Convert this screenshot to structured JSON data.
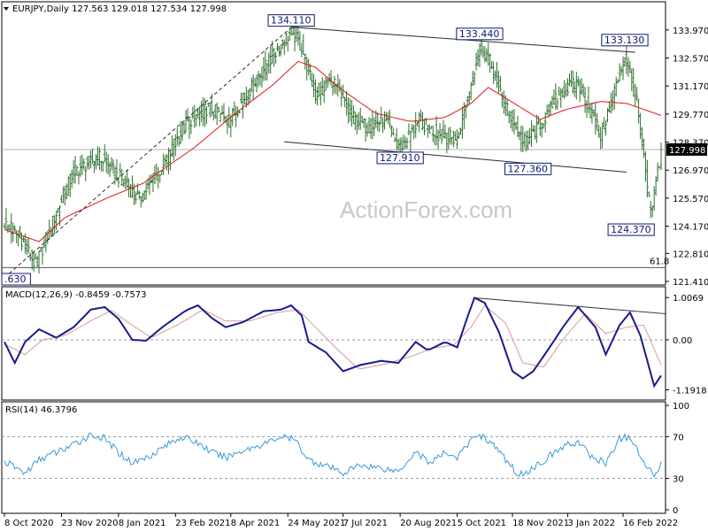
{
  "chart_data": [
    {
      "type": "bar",
      "panel": "price",
      "header": {
        "symbol": "EURJPY,Daily",
        "open": "127.563",
        "high": "129.018",
        "low": "127.534",
        "close": "127.998"
      },
      "ylim": [
        121.41,
        135.2
      ],
      "yticks": [
        "133.970",
        "132.570",
        "131.170",
        "129.770",
        "128.370",
        "126.970",
        "125.570",
        "124.170",
        "122.810",
        "121.410"
      ],
      "current_price": "127.998",
      "watermark": "ActionForex.com",
      "fib_label": "61.8",
      "annotations": [
        {
          "label": "134.110",
          "date_index": 166,
          "value": 134.11
        },
        {
          "label": "133.440",
          "date_index": 275,
          "value": 133.44
        },
        {
          "label": "133.130",
          "date_index": 359,
          "value": 133.13
        },
        {
          "label": "127.910",
          "date_index": 229,
          "value": 127.91
        },
        {
          "label": "127.360",
          "date_index": 303,
          "value": 127.36
        },
        {
          "label": "124.370",
          "date_index": 374,
          "value": 124.37
        },
        {
          "label": ".630",
          "date_index": 13,
          "value": 121.63
        }
      ],
      "close_path": [
        [
          0,
          124.3
        ],
        [
          10,
          123.5
        ],
        [
          18,
          122.2
        ],
        [
          30,
          124.8
        ],
        [
          40,
          126.9
        ],
        [
          55,
          127.6
        ],
        [
          70,
          126.3
        ],
        [
          78,
          125.5
        ],
        [
          92,
          127.2
        ],
        [
          105,
          129.3
        ],
        [
          118,
          130.1
        ],
        [
          130,
          129.4
        ],
        [
          145,
          131.4
        ],
        [
          158,
          133.0
        ],
        [
          166,
          133.9
        ],
        [
          172,
          133.1
        ],
        [
          180,
          130.7
        ],
        [
          190,
          131.5
        ],
        [
          200,
          129.7
        ],
        [
          210,
          129.1
        ],
        [
          220,
          129.5
        ],
        [
          229,
          128.1
        ],
        [
          240,
          129.4
        ],
        [
          252,
          128.7
        ],
        [
          262,
          128.5
        ],
        [
          270,
          131.3
        ],
        [
          275,
          133.2
        ],
        [
          280,
          132.6
        ],
        [
          290,
          130.2
        ],
        [
          300,
          128.3
        ],
        [
          310,
          129.2
        ],
        [
          322,
          130.9
        ],
        [
          332,
          131.3
        ],
        [
          345,
          128.7
        ],
        [
          352,
          130.6
        ],
        [
          359,
          132.7
        ],
        [
          366,
          130.3
        ],
        [
          374,
          124.7
        ],
        [
          380,
          127.9
        ]
      ],
      "ma_path": [
        [
          0,
          124.0
        ],
        [
          20,
          123.4
        ],
        [
          35,
          124.6
        ],
        [
          60,
          125.6
        ],
        [
          80,
          126.3
        ],
        [
          110,
          128.1
        ],
        [
          135,
          129.9
        ],
        [
          155,
          131.2
        ],
        [
          170,
          132.4
        ],
        [
          180,
          132.1
        ],
        [
          195,
          131.0
        ],
        [
          215,
          129.8
        ],
        [
          235,
          129.4
        ],
        [
          255,
          129.6
        ],
        [
          270,
          130.3
        ],
        [
          280,
          131.1
        ],
        [
          295,
          130.3
        ],
        [
          310,
          129.5
        ],
        [
          325,
          130.0
        ],
        [
          345,
          130.4
        ],
        [
          360,
          130.3
        ],
        [
          380,
          129.7
        ]
      ],
      "trend_lines": [
        {
          "from": [
            166,
            134.11
          ],
          "to": [
            365,
            132.85
          ]
        },
        {
          "from": [
            162,
            128.38
          ],
          "to": [
            360,
            126.87
          ]
        },
        {
          "from": [
            0,
            121.6
          ],
          "to": [
            166,
            134.1
          ],
          "style": "dashed"
        }
      ],
      "fib_level": 122.1
    },
    {
      "type": "line",
      "panel": "macd",
      "title": "MACD(12,26,9) -0.8459 -0.7573",
      "ylim": [
        -1.35,
        1.18
      ],
      "yticks": [
        "1.0069",
        "0.00",
        "-1.1918"
      ],
      "macd": [
        [
          0,
          -0.05
        ],
        [
          6,
          -0.55
        ],
        [
          12,
          -0.05
        ],
        [
          20,
          0.25
        ],
        [
          30,
          0.05
        ],
        [
          40,
          0.3
        ],
        [
          50,
          0.72
        ],
        [
          58,
          0.78
        ],
        [
          66,
          0.5
        ],
        [
          74,
          0.0
        ],
        [
          82,
          -0.02
        ],
        [
          92,
          0.32
        ],
        [
          105,
          0.7
        ],
        [
          112,
          0.82
        ],
        [
          120,
          0.52
        ],
        [
          128,
          0.3
        ],
        [
          138,
          0.42
        ],
        [
          150,
          0.68
        ],
        [
          160,
          0.72
        ],
        [
          166,
          0.82
        ],
        [
          172,
          0.58
        ],
        [
          176,
          -0.05
        ],
        [
          186,
          -0.3
        ],
        [
          196,
          -0.75
        ],
        [
          206,
          -0.6
        ],
        [
          218,
          -0.5
        ],
        [
          228,
          -0.55
        ],
        [
          238,
          -0.05
        ],
        [
          245,
          -0.25
        ],
        [
          255,
          -0.05
        ],
        [
          262,
          -0.18
        ],
        [
          268,
          0.55
        ],
        [
          272,
          1.0
        ],
        [
          278,
          0.88
        ],
        [
          286,
          0.2
        ],
        [
          294,
          -0.75
        ],
        [
          300,
          -0.92
        ],
        [
          306,
          -0.75
        ],
        [
          316,
          -0.15
        ],
        [
          324,
          0.35
        ],
        [
          332,
          0.78
        ],
        [
          342,
          0.3
        ],
        [
          348,
          -0.35
        ],
        [
          356,
          0.35
        ],
        [
          362,
          0.65
        ],
        [
          368,
          0.1
        ],
        [
          376,
          -1.1
        ],
        [
          380,
          -0.85
        ]
      ],
      "signal": [
        [
          0,
          -0.1
        ],
        [
          12,
          -0.35
        ],
        [
          22,
          0.0
        ],
        [
          35,
          0.1
        ],
        [
          50,
          0.45
        ],
        [
          62,
          0.7
        ],
        [
          72,
          0.4
        ],
        [
          85,
          0.05
        ],
        [
          100,
          0.35
        ],
        [
          115,
          0.72
        ],
        [
          128,
          0.45
        ],
        [
          142,
          0.45
        ],
        [
          158,
          0.65
        ],
        [
          170,
          0.72
        ],
        [
          180,
          0.3
        ],
        [
          192,
          -0.2
        ],
        [
          205,
          -0.7
        ],
        [
          220,
          -0.58
        ],
        [
          235,
          -0.4
        ],
        [
          248,
          -0.2
        ],
        [
          260,
          -0.12
        ],
        [
          270,
          0.3
        ],
        [
          278,
          0.82
        ],
        [
          290,
          0.4
        ],
        [
          300,
          -0.55
        ],
        [
          312,
          -0.65
        ],
        [
          324,
          0.05
        ],
        [
          336,
          0.62
        ],
        [
          348,
          0.15
        ],
        [
          360,
          0.3
        ],
        [
          370,
          0.35
        ],
        [
          380,
          -0.6
        ]
      ],
      "zero_line": 0,
      "trend_line": {
        "from": [
          272,
          1.0
        ],
        "to": [
          383,
          0.62
        ]
      }
    },
    {
      "type": "line",
      "panel": "rsi",
      "title": "RSI(14) 46.3796",
      "ylim": [
        0,
        100
      ],
      "yticks": [
        "100",
        "70",
        "30",
        "0"
      ],
      "levels": [
        70,
        30
      ],
      "rsi": [
        [
          0,
          46
        ],
        [
          6,
          41
        ],
        [
          12,
          35
        ],
        [
          20,
          48
        ],
        [
          30,
          55
        ],
        [
          40,
          62
        ],
        [
          50,
          72
        ],
        [
          58,
          68
        ],
        [
          66,
          55
        ],
        [
          74,
          45
        ],
        [
          82,
          50
        ],
        [
          92,
          60
        ],
        [
          102,
          70
        ],
        [
          112,
          64
        ],
        [
          120,
          55
        ],
        [
          128,
          50
        ],
        [
          138,
          57
        ],
        [
          150,
          63
        ],
        [
          160,
          70
        ],
        [
          168,
          67
        ],
        [
          176,
          48
        ],
        [
          186,
          42
        ],
        [
          196,
          35
        ],
        [
          206,
          43
        ],
        [
          218,
          40
        ],
        [
          228,
          37
        ],
        [
          238,
          56
        ],
        [
          246,
          45
        ],
        [
          256,
          55
        ],
        [
          262,
          50
        ],
        [
          270,
          66
        ],
        [
          274,
          73
        ],
        [
          282,
          64
        ],
        [
          290,
          48
        ],
        [
          298,
          33
        ],
        [
          306,
          40
        ],
        [
          316,
          52
        ],
        [
          324,
          61
        ],
        [
          332,
          65
        ],
        [
          340,
          50
        ],
        [
          348,
          45
        ],
        [
          356,
          68
        ],
        [
          362,
          70
        ],
        [
          368,
          50
        ],
        [
          376,
          33
        ],
        [
          380,
          46
        ]
      ]
    }
  ],
  "x_axis": {
    "start_label": "8 Oct 2020",
    "labels": [
      {
        "text": "8 Oct 2020",
        "i": 0
      },
      {
        "text": "23 Nov 2020",
        "i": 33
      },
      {
        "text": "8 Jan 2021",
        "i": 66
      },
      {
        "text": "23 Feb 2021",
        "i": 99
      },
      {
        "text": "8 Apr 2021",
        "i": 131
      },
      {
        "text": "24 May 2021",
        "i": 164
      },
      {
        "text": "7 Jul 2021",
        "i": 196
      },
      {
        "text": "20 Aug 2021",
        "i": 229
      },
      {
        "text": "5 Oct 2021",
        "i": 262
      },
      {
        "text": "18 Nov 2021",
        "i": 294
      },
      {
        "text": "3 Jan 2022",
        "i": 326
      },
      {
        "text": "16 Feb 2022",
        "i": 358
      }
    ],
    "bar_count": 381
  },
  "colors": {
    "bars": "#2f6f2f",
    "ma": "#e01818",
    "macd": "#1a1a8c",
    "signal": "#d89a9a",
    "rsi": "#3a9ad9",
    "trend": "#2b2b2b",
    "price_line": "#b0b0b0",
    "label_box": "#0a1a6e",
    "current_box": "#000000"
  }
}
